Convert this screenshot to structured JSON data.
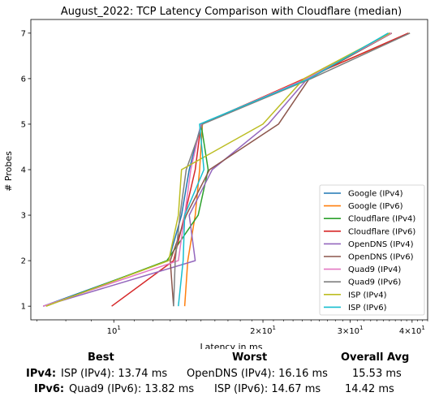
{
  "chart_data": {
    "type": "line",
    "title": "August_2022: TCP Latency Comparison with Cloudflare (median)",
    "xlabel": "Latency in ms",
    "ylabel": "# Probes",
    "x_scale": "log",
    "xlim": [
      6.8,
      43
    ],
    "ylim": [
      0.7,
      7.3
    ],
    "x_ticks": [
      {
        "value": 10,
        "label": "10^1"
      },
      {
        "value": 20,
        "label": "2×10^1"
      },
      {
        "value": 30,
        "label": "3×10^1"
      },
      {
        "value": 40,
        "label": "4×10^1"
      }
    ],
    "y_ticks": [
      1,
      2,
      3,
      4,
      5,
      6,
      7
    ],
    "y": [
      1,
      2,
      3,
      4,
      5,
      6,
      7
    ],
    "legend_position": "lower-right",
    "series": [
      {
        "name": "Google (IPv4)",
        "color": "#1f77b4",
        "x": [
          7.2,
          12.9,
          13.7,
          14.2,
          15.0,
          24.8,
          36.0
        ]
      },
      {
        "name": "Google (IPv6)",
        "color": "#ff7f0e",
        "x": [
          13.9,
          14.1,
          14.6,
          14.9,
          15.1,
          24.2,
          39.5
        ]
      },
      {
        "name": "Cloudflare (IPv4)",
        "color": "#2ca02c",
        "x": [
          7.3,
          12.8,
          14.8,
          15.5,
          15.0,
          24.5,
          36.2
        ]
      },
      {
        "name": "Cloudflare (IPv6)",
        "color": "#d62728",
        "x": [
          9.9,
          13.2,
          13.9,
          14.6,
          15.0,
          24.3,
          39.3
        ]
      },
      {
        "name": "OpenDNS (IPv4)",
        "color": "#9467bd",
        "x": [
          7.2,
          14.6,
          14.2,
          15.8,
          20.5,
          24.6,
          36.2
        ]
      },
      {
        "name": "OpenDNS (IPv6)",
        "color": "#8c564b",
        "x": [
          13.2,
          13.0,
          14.0,
          15.6,
          21.5,
          24.8,
          36.4
        ]
      },
      {
        "name": "Quad9 (IPv4)",
        "color": "#e377c2",
        "x": [
          7.2,
          13.5,
          13.9,
          14.3,
          15.0,
          24.5,
          36.3
        ]
      },
      {
        "name": "Quad9 (IPv6)",
        "color": "#7f7f7f",
        "x": [
          13.2,
          13.3,
          13.6,
          14.0,
          15.1,
          25.0,
          39.6
        ]
      },
      {
        "name": "ISP (IPv4)",
        "color": "#bcbd22",
        "x": [
          7.3,
          12.9,
          13.5,
          13.7,
          20.0,
          24.2,
          36.1
        ]
      },
      {
        "name": "ISP (IPv6)",
        "color": "#17becf",
        "x": [
          13.5,
          13.8,
          13.9,
          15.2,
          14.9,
          24.8,
          35.8
        ]
      }
    ]
  },
  "summary": {
    "headers": {
      "best": "Best",
      "worst": "Worst",
      "avg": "Overall Avg"
    },
    "rows": [
      {
        "label": "IPv4:",
        "best": "ISP (IPv4): 13.74 ms",
        "worst": "OpenDNS (IPv4): 16.16 ms",
        "avg": "15.53 ms"
      },
      {
        "label": "IPv6:",
        "best": "Quad9 (IPv6): 13.82 ms",
        "worst": "ISP (IPv6): 14.67 ms",
        "avg": "14.42 ms"
      }
    ]
  }
}
